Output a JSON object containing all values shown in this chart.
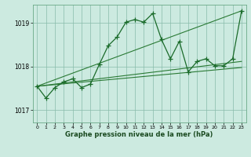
{
  "background_color": "#cceae0",
  "grid_color": "#88bbaa",
  "line_color": "#1a6b2a",
  "line_color2": "#2a7a35",
  "ylabel_ticks": [
    1017,
    1018,
    1019
  ],
  "xlabel_ticks": [
    0,
    1,
    2,
    3,
    4,
    5,
    6,
    7,
    8,
    9,
    10,
    11,
    12,
    13,
    14,
    15,
    16,
    17,
    18,
    19,
    20,
    21,
    22,
    23
  ],
  "xlabel_label": "Graphe pression niveau de la mer (hPa)",
  "xlim": [
    -0.5,
    23.5
  ],
  "ylim": [
    1016.72,
    1019.42
  ],
  "main_y": [
    1017.55,
    1017.28,
    1017.52,
    1017.65,
    1017.72,
    1017.52,
    1017.6,
    1018.05,
    1018.48,
    1018.68,
    1019.02,
    1019.08,
    1019.02,
    1019.22,
    1018.62,
    1018.18,
    1018.58,
    1017.88,
    1018.12,
    1018.18,
    1018.02,
    1018.02,
    1018.18,
    1019.28
  ],
  "trend1_x": [
    0,
    23
  ],
  "trend1_y": [
    1017.55,
    1017.98
  ],
  "trend2_x": [
    0,
    23
  ],
  "trend2_y": [
    1017.55,
    1018.12
  ],
  "trend3_x": [
    0,
    23
  ],
  "trend3_y": [
    1017.55,
    1019.28
  ]
}
